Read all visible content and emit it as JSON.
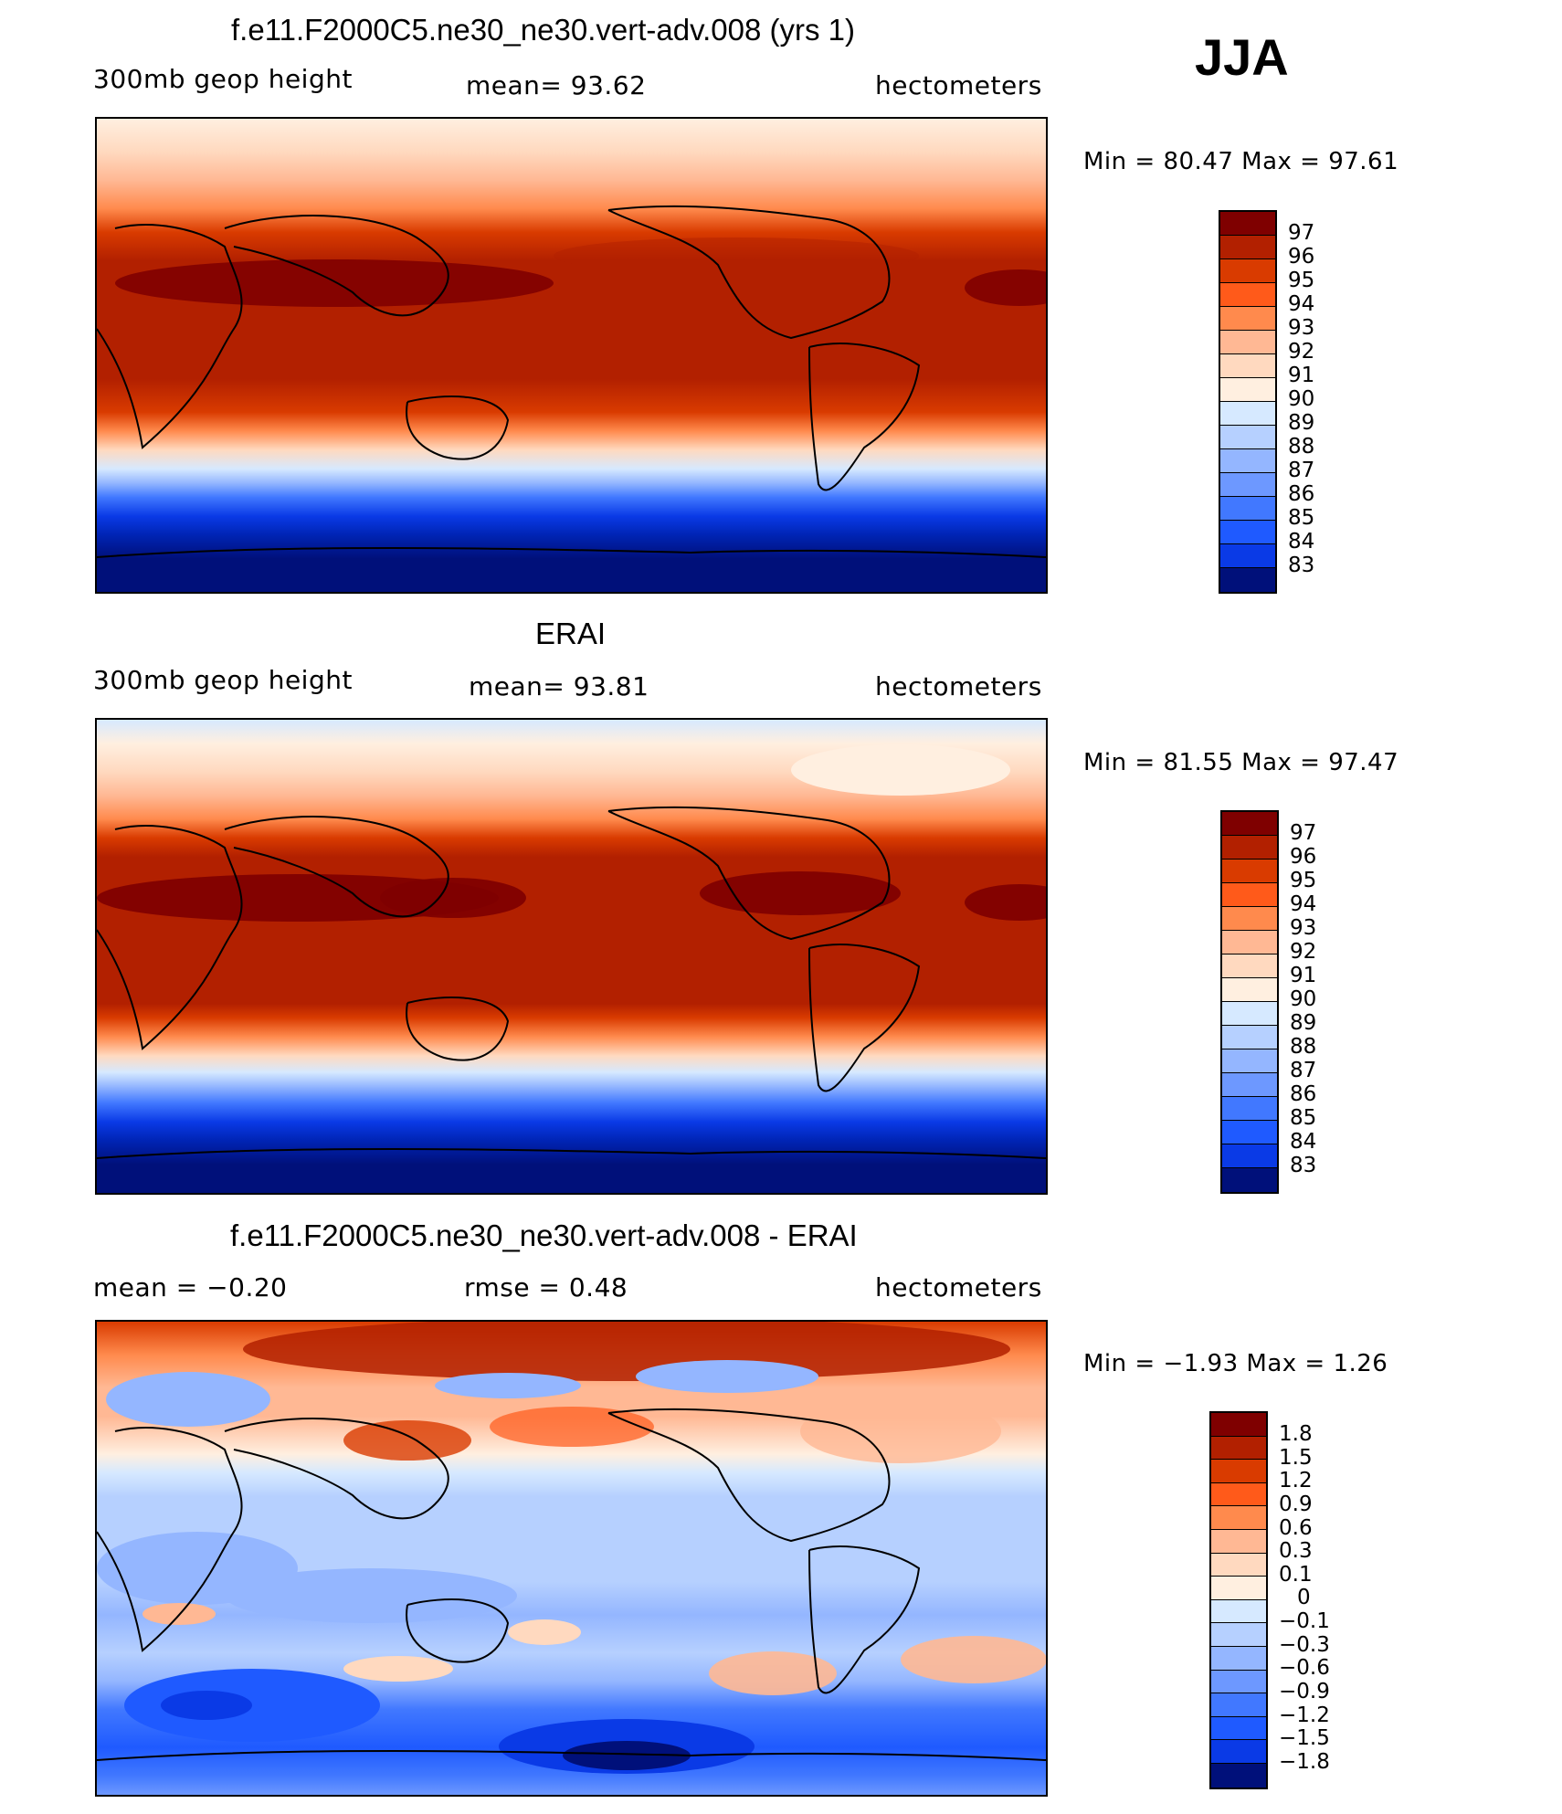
{
  "season": "JJA",
  "palette_warm": [
    "#7f0000",
    "#b22000",
    "#d93b00",
    "#ff5a1a",
    "#ff8a4d",
    "#ffb894",
    "#ffd9bf",
    "#ffefe0"
  ],
  "palette_cool": [
    "#d6e9ff",
    "#b6d0ff",
    "#94b6ff",
    "#6d98ff",
    "#4178ff",
    "#1f5aff",
    "#0a3ae6",
    "#0024b4",
    "#00107a"
  ],
  "panels": [
    {
      "id": "model",
      "title": "f.e11.F2000C5.ne30_ne30.vert-adv.008 (yrs 1)",
      "left_label": "300mb geop height",
      "center_label": "mean=  93.62",
      "right_label": "hectometers",
      "range_label": "Min =   80.47 Max =   97.61",
      "colorbar_labels": [
        "97",
        "96",
        "95",
        "94",
        "93",
        "92",
        "91",
        "90",
        "89",
        "88",
        "87",
        "86",
        "85",
        "84",
        "83"
      ]
    },
    {
      "id": "obs",
      "title": "ERAI",
      "left_label": "300mb geop height",
      "center_label": "mean=  93.81",
      "right_label": "hectometers",
      "range_label": "Min =   81.55 Max =   97.47",
      "colorbar_labels": [
        "97",
        "96",
        "95",
        "94",
        "93",
        "92",
        "91",
        "90",
        "89",
        "88",
        "87",
        "86",
        "85",
        "84",
        "83"
      ]
    },
    {
      "id": "diff",
      "title": "f.e11.F2000C5.ne30_ne30.vert-adv.008 - ERAI",
      "left_label": "mean =   −0.20",
      "center_label": "rmse =    0.48",
      "right_label": "hectometers",
      "range_label": "Min =   −1.93 Max =    1.26",
      "colorbar_labels": [
        "1.8",
        "1.5",
        "1.2",
        "0.9",
        "0.6",
        "0.3",
        "0.1",
        "0",
        "−0.1",
        "−0.3",
        "−0.6",
        "−0.9",
        "−1.2",
        "−1.5",
        "−1.8"
      ]
    }
  ]
}
